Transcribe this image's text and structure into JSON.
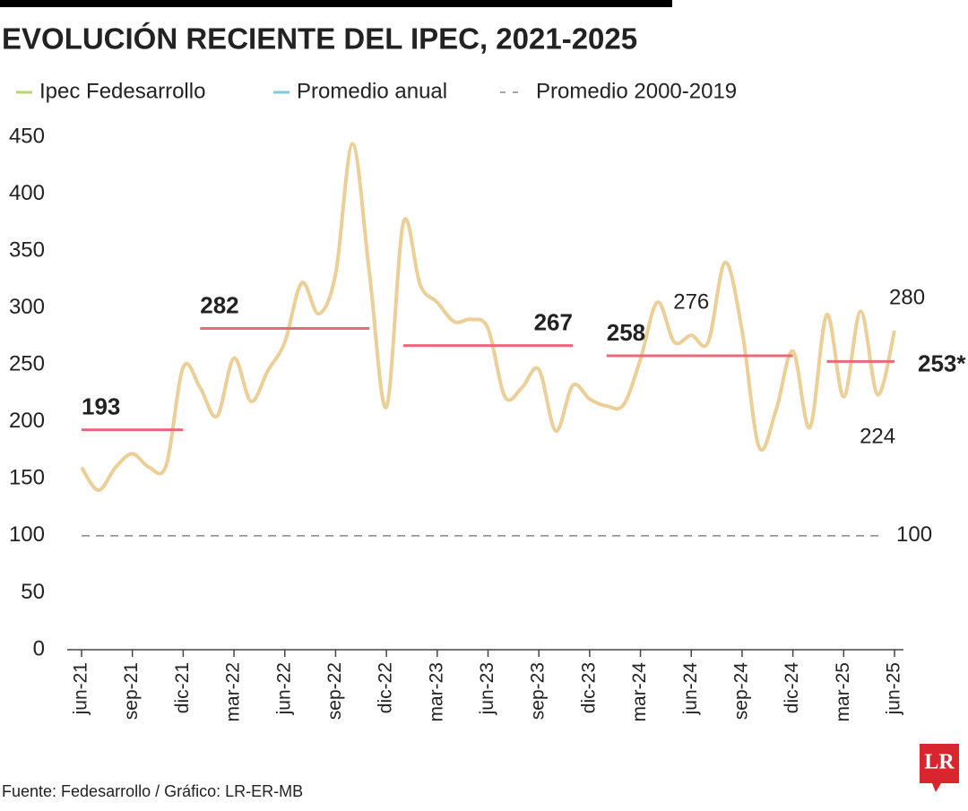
{
  "chart_data": {
    "type": "line",
    "title": "EVOLUCIÓN RECIENTE DEL IPEC, 2021-2025",
    "categories": [
      "jun-21",
      null,
      null,
      "sep-21",
      null,
      null,
      "dic-21",
      null,
      null,
      "mar-22",
      null,
      null,
      "jun-22",
      null,
      null,
      "sep-22",
      null,
      null,
      "dic-22",
      null,
      null,
      "mar-23",
      null,
      null,
      "jun-23",
      null,
      null,
      "sep-23",
      null,
      null,
      "dic-23",
      null,
      null,
      "mar-24",
      null,
      null,
      "jun-24",
      null,
      null,
      "sep-24",
      null,
      null,
      "dic-24",
      null,
      null,
      "mar-25",
      null,
      null,
      "jun-25"
    ],
    "series": [
      {
        "name": "Ipec Fedesarrollo",
        "color": "#ebcf96",
        "legend_color": "#b9d66e",
        "values": [
          160,
          140,
          160,
          172,
          160,
          162,
          248,
          230,
          205,
          256,
          218,
          245,
          270,
          322,
          295,
          330,
          444,
          330,
          213,
          375,
          320,
          305,
          288,
          290,
          282,
          222,
          230,
          246,
          192,
          232,
          220,
          214,
          215,
          255,
          305,
          270,
          276,
          270,
          340,
          280,
          178,
          210,
          262,
          195,
          294,
          222,
          297,
          224,
          280
        ],
        "value_labels": [
          null,
          null,
          null,
          null,
          null,
          null,
          null,
          null,
          null,
          null,
          null,
          null,
          null,
          null,
          null,
          null,
          null,
          null,
          null,
          null,
          null,
          null,
          null,
          null,
          null,
          null,
          null,
          null,
          null,
          null,
          null,
          null,
          null,
          null,
          null,
          null,
          "276",
          null,
          null,
          null,
          null,
          null,
          null,
          null,
          null,
          null,
          null,
          "224",
          "280"
        ]
      },
      {
        "name": "Promedio anual",
        "color": "#e8697a",
        "legend_color": "#7ec8e3",
        "values": [
          193,
          193,
          193,
          193,
          193,
          193,
          193,
          282,
          282,
          282,
          282,
          282,
          282,
          282,
          282,
          282,
          282,
          282,
          null,
          267,
          267,
          267,
          267,
          267,
          267,
          267,
          267,
          267,
          267,
          267,
          null,
          258,
          258,
          258,
          258,
          258,
          258,
          258,
          258,
          258,
          258,
          258,
          258,
          null,
          253,
          253,
          253,
          253,
          253
        ],
        "value_labels": [
          "193",
          null,
          null,
          null,
          null,
          null,
          null,
          "282",
          null,
          null,
          null,
          null,
          null,
          null,
          null,
          null,
          null,
          null,
          null,
          null,
          null,
          null,
          null,
          null,
          null,
          null,
          null,
          null,
          null,
          "267",
          null,
          "258",
          null,
          null,
          null,
          null,
          null,
          null,
          null,
          null,
          null,
          null,
          null,
          null,
          null,
          null,
          null,
          null,
          "253*"
        ]
      }
    ],
    "reference_line": {
      "name": "Promedio 2000-2019",
      "value": 100,
      "color": "#888888"
    },
    "ylim": [
      0,
      450
    ],
    "yticks": [
      0,
      50,
      100,
      150,
      200,
      250,
      300,
      350,
      400,
      450
    ],
    "grid": false,
    "source": "Fuente: Fedesarrollo / Gráfico: LR-ER-MB",
    "logo": "LR"
  }
}
